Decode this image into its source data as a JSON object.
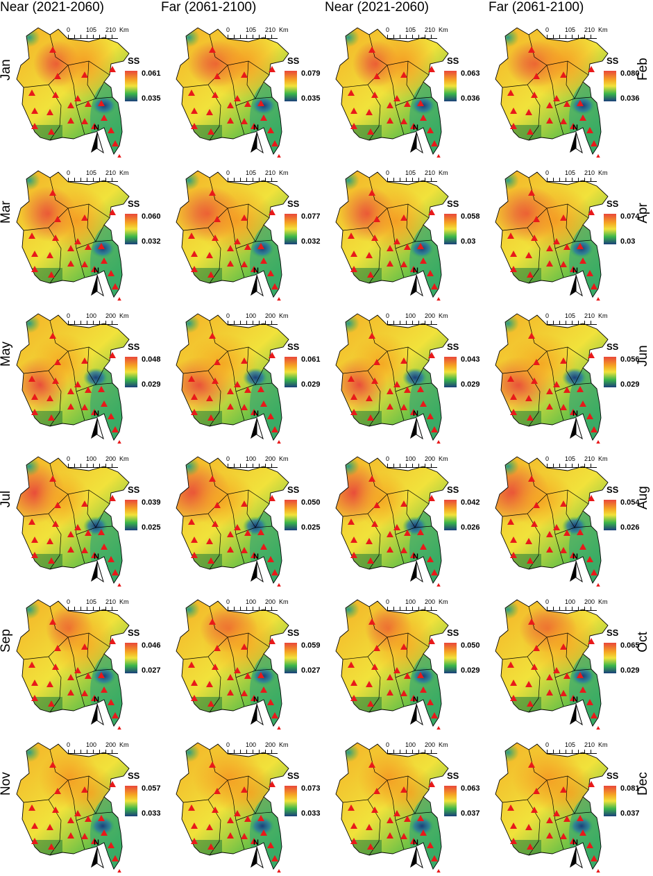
{
  "columns": [
    "Near (2021-2060)",
    "Far (2061-2100)",
    "Near (2021-2060)",
    "Far (2061-2100)"
  ],
  "legend_title": "SS",
  "north_label": "N",
  "scale_unit": "Km",
  "colors": {
    "high": "#e8473a",
    "mid_high": "#f5a623",
    "mid": "#f1e23b",
    "mid_low": "#3ab54a",
    "low": "#1b3f7a",
    "station": "#e8191a"
  },
  "rows": [
    {
      "left_label": "Jan",
      "right_label": "Feb",
      "panels": [
        {
          "max": "0.061",
          "min": "0.035",
          "scale": [
            "0",
            "105",
            "210"
          ]
        },
        {
          "max": "0.079",
          "min": "0.035",
          "scale": [
            "0",
            "105",
            "210"
          ]
        },
        {
          "max": "0.063",
          "min": "0.036",
          "scale": [
            "0",
            "105",
            "210"
          ]
        },
        {
          "max": "0.080",
          "min": "0.036",
          "scale": [
            "0",
            "105",
            "210"
          ]
        }
      ]
    },
    {
      "left_label": "Mar",
      "right_label": "Apr",
      "panels": [
        {
          "max": "0.060",
          "min": "0.032",
          "scale": [
            "0",
            "105",
            "210"
          ]
        },
        {
          "max": "0.077",
          "min": "0.032",
          "scale": [
            "0",
            "105",
            "210"
          ]
        },
        {
          "max": "0.058",
          "min": "0.03",
          "scale": [
            "0",
            "105",
            "210"
          ]
        },
        {
          "max": "0.074",
          "min": "0.03",
          "scale": [
            "0",
            "105",
            "210"
          ]
        }
      ]
    },
    {
      "left_label": "May",
      "right_label": "Jun",
      "panels": [
        {
          "max": "0.048",
          "min": "0.029",
          "scale": [
            "0",
            "100",
            "200"
          ]
        },
        {
          "max": "0.061",
          "min": "0.029",
          "scale": [
            "0",
            "100",
            "200"
          ]
        },
        {
          "max": "0.043",
          "min": "0.029",
          "scale": [
            "0",
            "100",
            "200"
          ]
        },
        {
          "max": "0.056",
          "min": "0.029",
          "scale": [
            "0",
            "105",
            "210"
          ]
        }
      ]
    },
    {
      "left_label": "Jul",
      "right_label": "Aug",
      "panels": [
        {
          "max": "0.039",
          "min": "0.025",
          "scale": [
            "0",
            "100",
            "200"
          ]
        },
        {
          "max": "0.050",
          "min": "0.025",
          "scale": [
            "0",
            "100",
            "200"
          ]
        },
        {
          "max": "0.042",
          "min": "0.026",
          "scale": [
            "0",
            "100",
            "200"
          ]
        },
        {
          "max": "0.054",
          "min": "0.026",
          "scale": [
            "0",
            "105",
            "210"
          ]
        }
      ]
    },
    {
      "left_label": "Sep",
      "right_label": "Oct",
      "panels": [
        {
          "max": "0.046",
          "min": "0.027",
          "scale": [
            "0",
            "105",
            "210"
          ]
        },
        {
          "max": "0.059",
          "min": "0.027",
          "scale": [
            "0",
            "100",
            "200"
          ]
        },
        {
          "max": "0.050",
          "min": "0.029",
          "scale": [
            "0",
            "100",
            "200"
          ]
        },
        {
          "max": "0.065",
          "min": "0.029",
          "scale": [
            "0",
            "100",
            "200"
          ]
        }
      ]
    },
    {
      "left_label": "Nov",
      "right_label": "Dec",
      "panels": [
        {
          "max": "0.057",
          "min": "0.033",
          "scale": [
            "0",
            "100",
            "200"
          ]
        },
        {
          "max": "0.073",
          "min": "0.033",
          "scale": [
            "0",
            "100",
            "200"
          ]
        },
        {
          "max": "0.063",
          "min": "0.037",
          "scale": [
            "0",
            "100",
            "200"
          ]
        },
        {
          "max": "0.081",
          "min": "0.037",
          "scale": [
            "0",
            "105",
            "210"
          ]
        }
      ]
    }
  ]
}
